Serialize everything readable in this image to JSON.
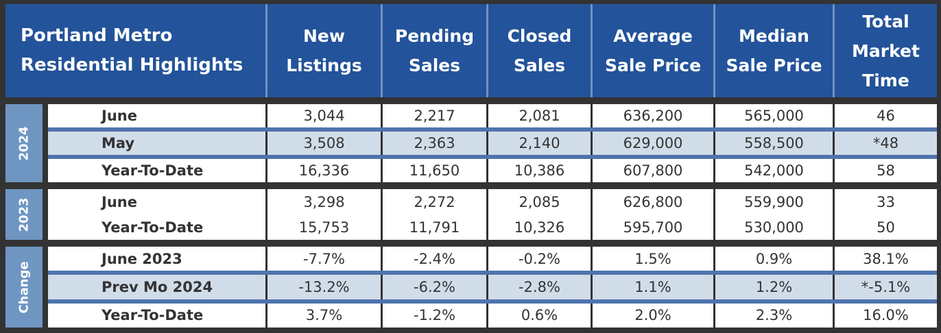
{
  "header": {
    "title": "Portland Metro Residential Highlights",
    "columns": [
      "New Listings",
      "Pending Sales",
      "Closed Sales",
      "Average Sale Price",
      "Median Sale Price",
      "Total Market Time"
    ]
  },
  "groups": [
    {
      "label": "2024",
      "rows": [
        {
          "label": "June",
          "values": [
            "3,044",
            "2,217",
            "2,081",
            "636,200",
            "565,000",
            "46"
          ]
        },
        {
          "label": "May",
          "values": [
            "3,508",
            "2,363",
            "2,140",
            "629,000",
            "558,500",
            "*48"
          ]
        },
        {
          "label": "Year-To-Date",
          "values": [
            "16,336",
            "11,650",
            "10,386",
            "607,800",
            "542,000",
            "58"
          ]
        }
      ]
    },
    {
      "label": "2023",
      "rows": [
        {
          "label": "June",
          "values": [
            "3,298",
            "2,272",
            "2,085",
            "626,800",
            "559,900",
            "33"
          ]
        },
        {
          "label": "Year-To-Date",
          "values": [
            "15,753",
            "11,791",
            "10,326",
            "595,700",
            "530,000",
            "50"
          ]
        }
      ]
    },
    {
      "label": "Change",
      "rows": [
        {
          "label": "June 2023",
          "values": [
            "-7.7%",
            "-2.4%",
            "-0.2%",
            "1.5%",
            "0.9%",
            "38.1%"
          ]
        },
        {
          "label": "Prev Mo 2024",
          "values": [
            "-13.2%",
            "-6.2%",
            "-2.8%",
            "1.1%",
            "1.2%",
            "*-5.1%"
          ]
        },
        {
          "label": "Year-To-Date",
          "values": [
            "3.7%",
            "-1.2%",
            "0.6%",
            "2.0%",
            "2.3%",
            "16.0%"
          ]
        }
      ]
    }
  ]
}
